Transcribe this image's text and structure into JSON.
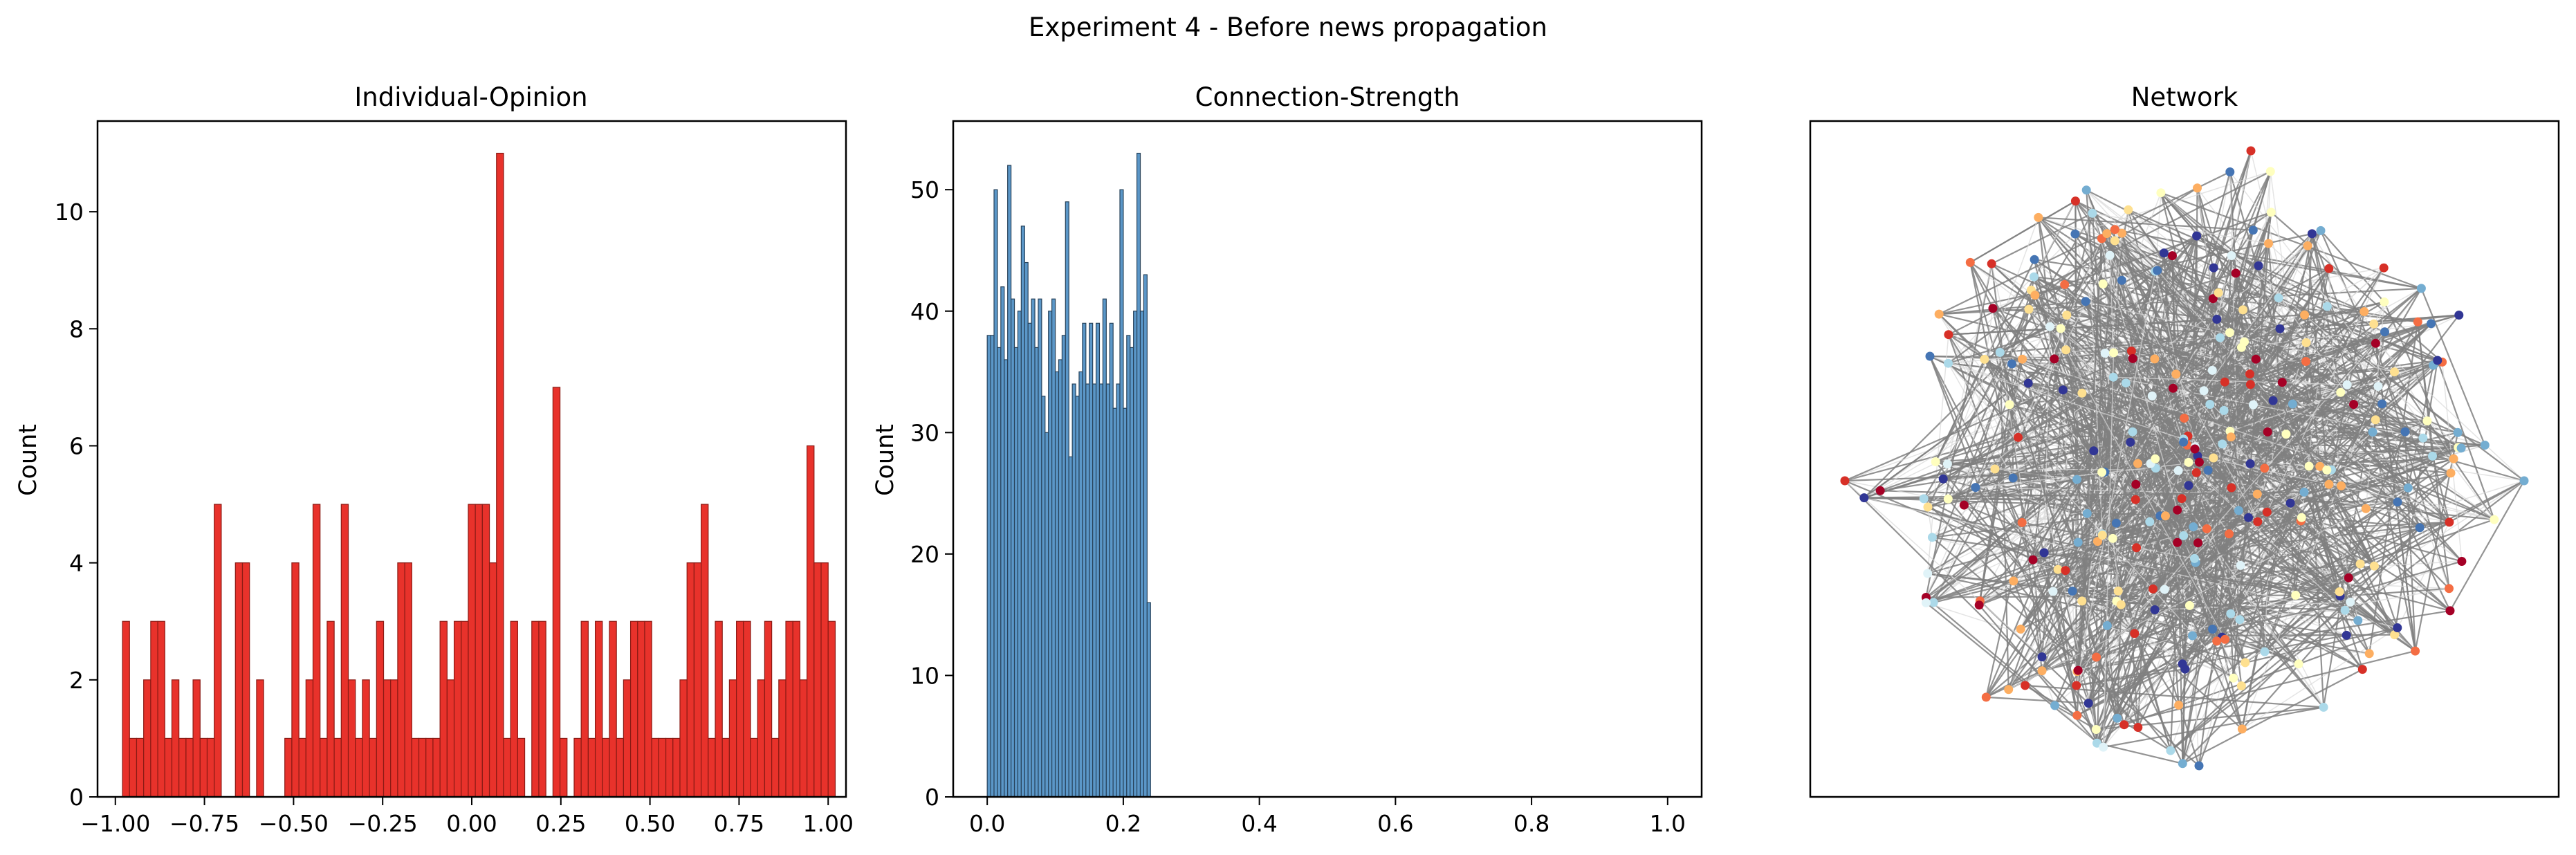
{
  "figure": {
    "title": "Experiment 4 - Before news propagation"
  },
  "chart_data": [
    {
      "type": "bar",
      "title": "Individual-Opinion",
      "xlabel": "",
      "ylabel": "Count",
      "xlim": [
        -1.05,
        1.05
      ],
      "ylim": [
        0,
        11.55
      ],
      "xticks": [
        -1.0,
        -0.75,
        -0.5,
        -0.25,
        0.0,
        0.25,
        0.5,
        0.75,
        1.0
      ],
      "xtick_labels": [
        "−1.00",
        "−0.75",
        "−0.50",
        "−0.25",
        "0.00",
        "0.25",
        "0.50",
        "0.75",
        "1.00"
      ],
      "yticks": [
        0,
        2,
        4,
        6,
        8,
        10
      ],
      "ytick_labels": [
        "0",
        "2",
        "4",
        "6",
        "8",
        "10"
      ],
      "bin_start": -0.98,
      "bin_width": 0.0198,
      "values": [
        3,
        1,
        1,
        2,
        3,
        3,
        1,
        2,
        1,
        1,
        2,
        1,
        1,
        5,
        0,
        0,
        4,
        4,
        0,
        2,
        0,
        0,
        0,
        1,
        4,
        1,
        2,
        5,
        1,
        3,
        1,
        5,
        2,
        1,
        2,
        1,
        3,
        2,
        2,
        4,
        4,
        1,
        1,
        1,
        1,
        3,
        2,
        3,
        3,
        5,
        5,
        5,
        4,
        11,
        1,
        3,
        1,
        0,
        3,
        3,
        0,
        7,
        1,
        0,
        1,
        3,
        1,
        3,
        1,
        3,
        1,
        2,
        3,
        3,
        3,
        1,
        1,
        1,
        1,
        2,
        4,
        4,
        5,
        1,
        3,
        1,
        2,
        3,
        3,
        1,
        2,
        3,
        1,
        2,
        3,
        3,
        2,
        6,
        4,
        4,
        3
      ],
      "bar_color": "#e8322b",
      "edge_color": "#8a1a14",
      "grid": false
    },
    {
      "type": "bar",
      "title": "Connection-Strength",
      "xlabel": "",
      "ylabel": "Count",
      "xlim": [
        -0.05,
        1.05
      ],
      "ylim": [
        0,
        55.65
      ],
      "xticks": [
        0.0,
        0.2,
        0.4,
        0.6,
        0.8,
        1.0
      ],
      "xtick_labels": [
        "0.0",
        "0.2",
        "0.4",
        "0.6",
        "0.8",
        "1.0"
      ],
      "yticks": [
        0,
        10,
        20,
        30,
        40,
        50
      ],
      "ytick_labels": [
        "0",
        "10",
        "20",
        "30",
        "40",
        "50"
      ],
      "bin_start": 0.0,
      "bin_width": 0.005,
      "values": [
        38,
        38,
        50,
        37,
        42,
        36,
        52,
        41,
        37,
        40,
        47,
        44,
        39,
        41,
        37,
        41,
        33,
        30,
        40,
        41,
        35,
        36,
        38,
        49,
        28,
        34,
        33,
        35,
        39,
        34,
        39,
        34,
        39,
        34,
        41,
        34,
        39,
        32,
        34,
        50,
        32,
        38,
        37,
        40,
        53,
        40,
        43,
        16
      ],
      "bar_color": "#5b97c8",
      "edge_color": "#27425a",
      "grid": false
    },
    {
      "type": "network",
      "title": "Network",
      "node_colors": [
        "#a50026",
        "#d73027",
        "#f46d43",
        "#fdae61",
        "#fee090",
        "#ffffbf",
        "#e0f3f8",
        "#abd9e9",
        "#74add1",
        "#4575b4",
        "#313695"
      ],
      "edge_color": "#808080",
      "axes_visible": false
    }
  ]
}
